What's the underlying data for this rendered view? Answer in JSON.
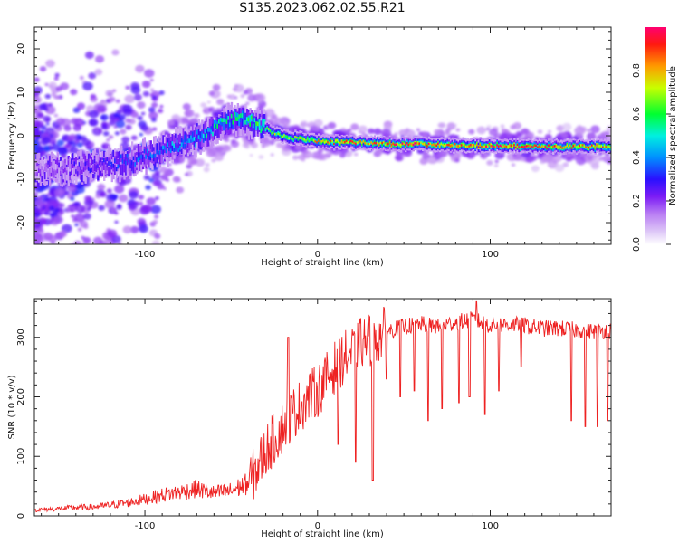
{
  "title": "S135.2023.062.02.55.R21",
  "chart_data": [
    {
      "type": "heatmap",
      "title": "S135.2023.062.02.55.R21",
      "xlabel": "Height of straight line (km)",
      "ylabel": "Frequency (Hz)",
      "xlim": [
        -164,
        170
      ],
      "ylim": [
        -25,
        25
      ],
      "xticks": [
        -100,
        0,
        100
      ],
      "yticks": [
        -20,
        -10,
        0,
        10,
        20
      ],
      "colorbar": {
        "label": "Normalized spectral amplitude",
        "range": [
          0,
          1
        ],
        "ticks": [
          "0.0",
          "0.2",
          "0.4",
          "0.6",
          "0.8"
        ],
        "tick_values": [
          0,
          0.2,
          0.4,
          0.6,
          0.8
        ],
        "colors": [
          "#ffffff",
          "#d7b6f5",
          "#9b3cf0",
          "#4a00ff",
          "#0040ff",
          "#00d8ff",
          "#00ff40",
          "#ffff00",
          "#ff2a00",
          "#ff0060"
        ]
      },
      "ridge": {
        "x": [
          -160,
          -130,
          -110,
          -95,
          -80,
          -65,
          -55,
          -45,
          -35,
          -25,
          -15,
          -5,
          5,
          20,
          40,
          60,
          80,
          100,
          120,
          140,
          170
        ],
        "frequency": [
          -8,
          -7,
          -6,
          -4,
          -2,
          0,
          3,
          4,
          3,
          0.5,
          -0.5,
          -1,
          -1.5,
          -1.5,
          -1.8,
          -2,
          -2.2,
          -2.3,
          -2.4,
          -2.5,
          -2.5
        ],
        "peak_amplitude": [
          0.2,
          0.3,
          0.35,
          0.4,
          0.45,
          0.5,
          0.55,
          0.6,
          0.65,
          0.7,
          0.75,
          0.8,
          0.85,
          0.9,
          0.9,
          0.95,
          0.9,
          0.95,
          0.95,
          0.9,
          0.9
        ]
      }
    },
    {
      "type": "line",
      "xlabel": "Height of straight line (km)",
      "ylabel": "SNR (10 * v/v)",
      "xlim": [
        -164,
        170
      ],
      "ylim": [
        0,
        365
      ],
      "xticks": [
        -100,
        0,
        100
      ],
      "yticks": [
        0,
        100,
        200,
        300
      ],
      "series": [
        {
          "name": "SNR",
          "color": "#ee2222",
          "x": [
            -164,
            -150,
            -140,
            -130,
            -120,
            -110,
            -100,
            -90,
            -80,
            -70,
            -60,
            -50,
            -40,
            -35,
            -30,
            -25,
            -20,
            -15,
            -10,
            -5,
            0,
            5,
            10,
            15,
            20,
            25,
            30,
            35,
            40,
            50,
            60,
            70,
            80,
            90,
            100,
            110,
            120,
            130,
            140,
            150,
            160,
            170
          ],
          "y": [
            10,
            12,
            14,
            15,
            18,
            22,
            28,
            35,
            40,
            45,
            38,
            42,
            55,
            80,
            110,
            130,
            150,
            170,
            185,
            200,
            210,
            230,
            250,
            265,
            275,
            290,
            295,
            300,
            310,
            318,
            322,
            318,
            325,
            330,
            320,
            322,
            320,
            315,
            315,
            312,
            310,
            312
          ]
        }
      ],
      "dips": [
        {
          "x": 12,
          "y": 120
        },
        {
          "x": 22,
          "y": 90
        },
        {
          "x": 32,
          "y": 60
        },
        {
          "x": 40,
          "y": 230
        },
        {
          "x": 48,
          "y": 200
        },
        {
          "x": 56,
          "y": 210
        },
        {
          "x": 64,
          "y": 160
        },
        {
          "x": 72,
          "y": 180
        },
        {
          "x": 82,
          "y": 190
        },
        {
          "x": 88,
          "y": 200
        },
        {
          "x": 97,
          "y": 170
        },
        {
          "x": 105,
          "y": 210
        },
        {
          "x": 118,
          "y": 250
        },
        {
          "x": 147,
          "y": 160
        },
        {
          "x": 155,
          "y": 150
        },
        {
          "x": 162,
          "y": 150
        },
        {
          "x": 168,
          "y": 160
        }
      ],
      "spikes": [
        {
          "x": -17,
          "y": 300
        },
        {
          "x": 92,
          "y": 360
        }
      ]
    }
  ]
}
